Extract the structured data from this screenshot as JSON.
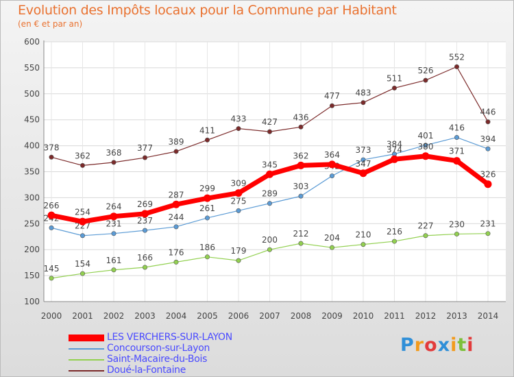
{
  "page": {
    "title": "Evolution des Impôts locaux pour la Commune par Habitant",
    "subtitle": "(en € et par an)",
    "logo": "Proxiti"
  },
  "chart_data": {
    "type": "line",
    "x": [
      2000,
      2001,
      2002,
      2003,
      2004,
      2005,
      2006,
      2007,
      2008,
      2009,
      2010,
      2011,
      2012,
      2013,
      2014
    ],
    "ylim": [
      100,
      600
    ],
    "yticks": [
      100,
      150,
      200,
      250,
      300,
      350,
      400,
      450,
      500,
      550,
      600
    ],
    "grid": true,
    "legend_position": "bottom-left",
    "series": [
      {
        "name": "Doué-la-Fontaine",
        "color": "#7b2a2a",
        "width": 1.2,
        "values": [
          378,
          362,
          368,
          377,
          389,
          411,
          433,
          427,
          436,
          477,
          483,
          511,
          526,
          552,
          446
        ]
      },
      {
        "name": "Concourson-sur-Layon",
        "color": "#5b9bd5",
        "width": 1.2,
        "values": [
          242,
          227,
          231,
          237,
          244,
          261,
          275,
          289,
          303,
          342,
          373,
          384,
          401,
          416,
          394
        ]
      },
      {
        "name": "Saint-Macaire-du-Bois",
        "color": "#92d050",
        "width": 1.2,
        "values": [
          145,
          154,
          161,
          166,
          176,
          186,
          179,
          200,
          212,
          204,
          210,
          216,
          227,
          230,
          231
        ]
      },
      {
        "name": "LES VERCHERS-SUR-LAYON",
        "color": "#ff0000",
        "width": 7,
        "values": [
          266,
          254,
          264,
          269,
          287,
          299,
          309,
          345,
          362,
          364,
          347,
          374,
          380,
          371,
          326
        ]
      }
    ]
  }
}
